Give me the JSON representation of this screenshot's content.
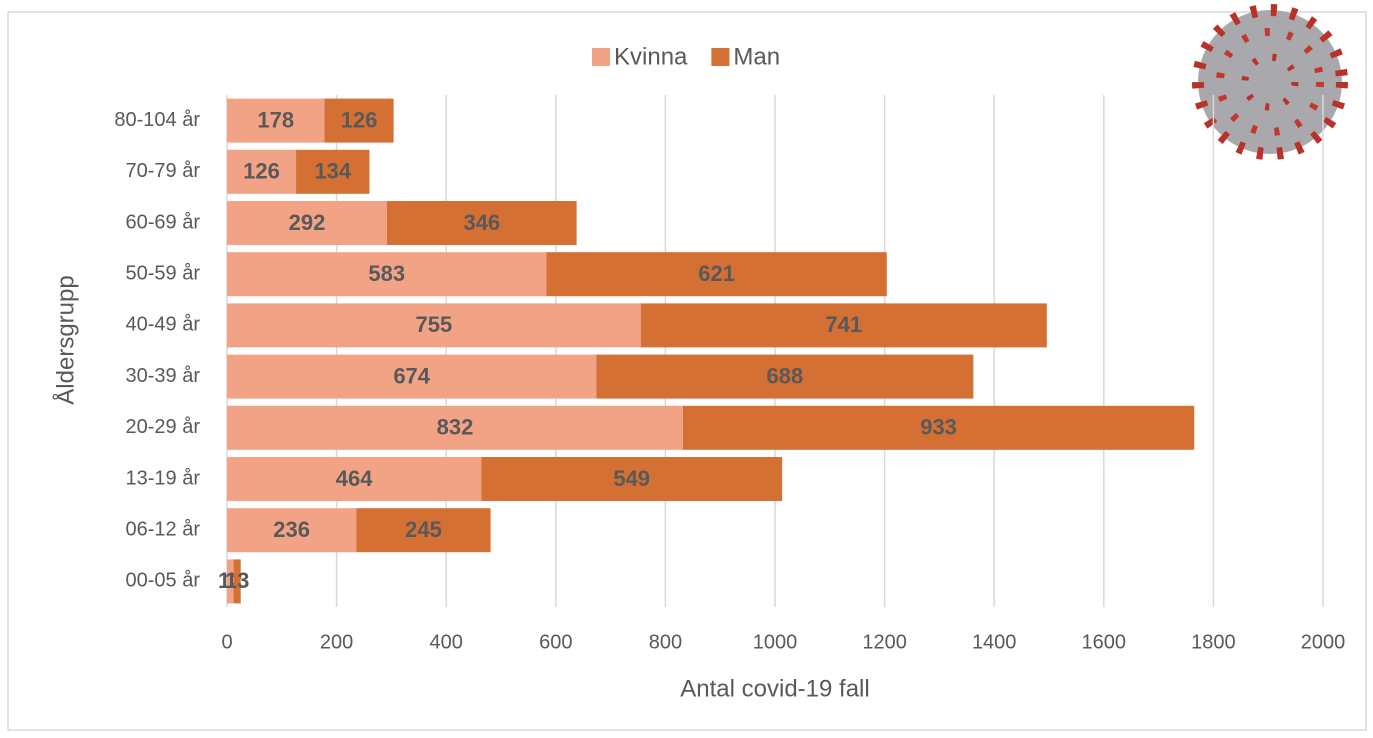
{
  "chart_data": {
    "type": "bar",
    "orientation": "horizontal",
    "stacked": true,
    "categories": [
      "80-104 år",
      "70-79 år",
      "60-69 år",
      "50-59 år",
      "40-49 år",
      "30-39 år",
      "20-29 år",
      "13-19 år",
      "06-12 år",
      "00-05 år"
    ],
    "series": [
      {
        "name": "Kvinna",
        "color": "#f2a385",
        "values": [
          178,
          126,
          292,
          583,
          755,
          674,
          832,
          464,
          236,
          12
        ]
      },
      {
        "name": "Man",
        "color": "#d57034",
        "values": [
          126,
          134,
          346,
          621,
          741,
          688,
          933,
          549,
          245,
          13
        ]
      }
    ],
    "xlabel": "Antal covid-19 fall",
    "ylabel": "Åldersgrupp",
    "xlim": [
      0,
      2000
    ],
    "xticks": [
      0,
      200,
      400,
      600,
      800,
      1000,
      1200,
      1400,
      1600,
      1800,
      2000
    ],
    "grid": true,
    "legend": "top"
  }
}
